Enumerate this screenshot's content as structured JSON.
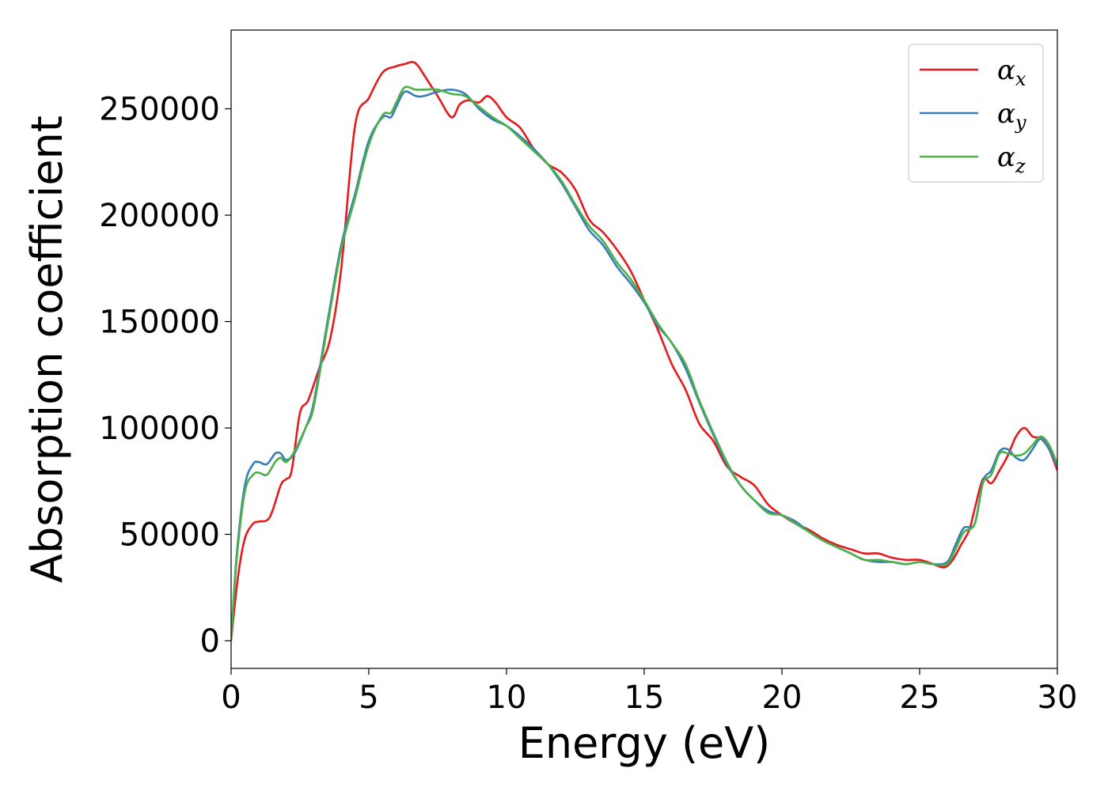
{
  "chart_data": {
    "type": "line",
    "xlabel": "Energy (eV)",
    "ylabel": "Absorption coefficient",
    "xlim": [
      0,
      30
    ],
    "ylim": [
      -13000,
      287000
    ],
    "xticks": [
      0,
      5,
      10,
      15,
      20,
      25,
      30
    ],
    "yticks": [
      0,
      50000,
      100000,
      150000,
      200000,
      250000
    ],
    "xtick_labels": [
      "0",
      "5",
      "10",
      "15",
      "20",
      "25",
      "30"
    ],
    "ytick_labels": [
      "0",
      "50000",
      "100000",
      "150000",
      "200000",
      "250000"
    ],
    "grid": false,
    "legend_position": "top-right",
    "series": [
      {
        "symbol": "α",
        "subscript": "x",
        "color": "#e41a1c",
        "x": [
          0,
          0.25,
          0.5,
          0.8,
          1.0,
          1.4,
          1.8,
          2.0,
          2.2,
          2.5,
          2.8,
          3.2,
          3.6,
          4.0,
          4.5,
          5.0,
          5.5,
          6.0,
          6.3,
          6.6,
          6.8,
          7.0,
          7.5,
          8.0,
          8.3,
          8.6,
          9.0,
          9.3,
          9.6,
          10.0,
          10.5,
          11.0,
          11.5,
          12.0,
          12.5,
          13.0,
          13.5,
          14.0,
          14.5,
          15.0,
          15.5,
          16.0,
          16.5,
          17.0,
          17.5,
          18.0,
          18.5,
          19.0,
          19.5,
          20.0,
          20.5,
          21.0,
          21.5,
          22.0,
          22.5,
          23.0,
          23.5,
          24.0,
          24.5,
          25.0,
          25.5,
          25.9,
          26.2,
          26.5,
          26.8,
          27.0,
          27.3,
          27.6,
          27.9,
          28.2,
          28.5,
          28.8,
          29.1,
          29.4,
          29.7,
          30.0
        ],
        "y": [
          0,
          30000,
          48000,
          55000,
          56000,
          58000,
          73000,
          76000,
          80000,
          107000,
          113000,
          128000,
          142000,
          175000,
          242000,
          255000,
          267000,
          270000,
          271000,
          272000,
          270000,
          266000,
          256000,
          246000,
          252000,
          254000,
          253000,
          256000,
          253000,
          246000,
          241000,
          231000,
          224000,
          220000,
          212000,
          198000,
          192000,
          184000,
          174000,
          160000,
          146000,
          130000,
          118000,
          102000,
          94000,
          82000,
          77000,
          73000,
          64000,
          59000,
          55000,
          52000,
          48000,
          45000,
          43000,
          41000,
          41000,
          39000,
          38000,
          38000,
          36000,
          34500,
          38000,
          45000,
          52000,
          62000,
          76000,
          74000,
          80000,
          87000,
          96000,
          100000,
          96000,
          95000,
          90000,
          80000
        ]
      },
      {
        "symbol": "α",
        "subscript": "y",
        "color": "#377eb8",
        "x": [
          0,
          0.2,
          0.5,
          0.8,
          1.0,
          1.3,
          1.6,
          1.8,
          2.0,
          2.3,
          2.7,
          3.0,
          3.5,
          4.0,
          4.5,
          5.0,
          5.5,
          5.8,
          6.0,
          6.3,
          6.7,
          7.0,
          7.5,
          8.0,
          8.5,
          9.0,
          9.5,
          10.0,
          10.5,
          11.0,
          11.5,
          12.0,
          12.5,
          13.0,
          13.5,
          14.0,
          14.5,
          15.0,
          15.5,
          16.0,
          16.5,
          17.0,
          17.5,
          18.0,
          18.5,
          19.0,
          19.5,
          20.0,
          20.5,
          21.0,
          21.5,
          22.0,
          22.5,
          23.0,
          23.5,
          24.0,
          24.5,
          25.0,
          25.5,
          26.0,
          26.3,
          26.6,
          27.0,
          27.3,
          27.6,
          27.9,
          28.2,
          28.5,
          28.8,
          29.1,
          29.4,
          29.7,
          30.0
        ],
        "y": [
          0,
          40000,
          73000,
          83000,
          84000,
          83000,
          88000,
          88000,
          85000,
          88000,
          100000,
          112000,
          150000,
          186000,
          210000,
          235000,
          246000,
          246000,
          251000,
          258000,
          256000,
          256000,
          258000,
          259000,
          257000,
          250000,
          245000,
          242000,
          237000,
          231000,
          224000,
          215000,
          204000,
          193000,
          186000,
          176000,
          168000,
          159000,
          148000,
          140000,
          128000,
          112000,
          97000,
          83000,
          73000,
          66000,
          61000,
          59000,
          56000,
          51000,
          47000,
          44000,
          41000,
          38000,
          37000,
          37000,
          36000,
          37000,
          36000,
          37000,
          45000,
          53000,
          55000,
          75000,
          80000,
          89000,
          90000,
          86000,
          85000,
          90000,
          95000,
          90000,
          82000
        ]
      },
      {
        "symbol": "α",
        "subscript": "z",
        "color": "#4daf4a",
        "x": [
          0,
          0.2,
          0.5,
          0.8,
          1.0,
          1.3,
          1.6,
          1.8,
          2.0,
          2.3,
          2.7,
          3.0,
          3.5,
          4.0,
          4.5,
          5.0,
          5.5,
          5.8,
          6.0,
          6.3,
          6.7,
          7.0,
          7.5,
          8.0,
          8.5,
          9.0,
          9.5,
          10.0,
          10.5,
          11.0,
          11.5,
          12.0,
          12.5,
          13.0,
          13.5,
          14.0,
          14.5,
          15.0,
          15.5,
          16.0,
          16.5,
          17.0,
          17.5,
          18.0,
          18.5,
          19.0,
          19.5,
          20.0,
          20.5,
          21.0,
          21.5,
          22.0,
          22.5,
          23.0,
          23.5,
          24.0,
          24.5,
          25.0,
          25.5,
          26.0,
          26.3,
          26.6,
          27.0,
          27.3,
          27.6,
          27.9,
          28.2,
          28.5,
          28.8,
          29.1,
          29.4,
          29.7,
          30.0
        ],
        "y": [
          0,
          38000,
          70000,
          78000,
          79000,
          78000,
          84000,
          86000,
          84000,
          89000,
          100000,
          110000,
          148000,
          184000,
          208000,
          233000,
          247000,
          248000,
          253000,
          260000,
          259000,
          259000,
          259000,
          257000,
          256000,
          251000,
          246000,
          242000,
          236000,
          230000,
          224000,
          216000,
          205000,
          195000,
          188000,
          178000,
          170000,
          160000,
          149000,
          140000,
          130000,
          113000,
          98000,
          84000,
          73000,
          66000,
          60000,
          59000,
          55000,
          51000,
          47000,
          44000,
          41000,
          38000,
          38000,
          37000,
          36000,
          37000,
          36000,
          36000,
          43000,
          51000,
          55000,
          74000,
          78000,
          88000,
          88000,
          87000,
          88000,
          92000,
          96000,
          92000,
          83000
        ]
      }
    ]
  }
}
